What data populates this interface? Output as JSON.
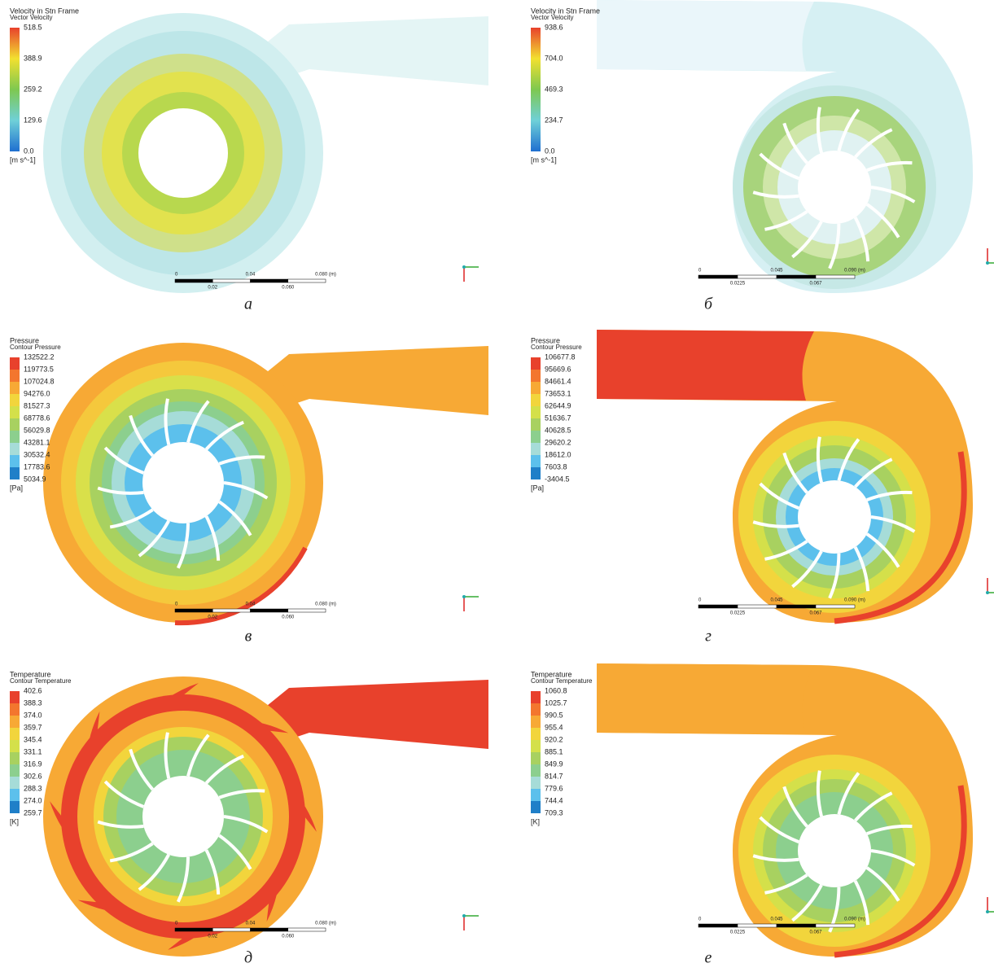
{
  "panels": [
    {
      "label": "а",
      "legend": {
        "title": "Velocity in Stn Frame",
        "subtitle": "Vector Velocity",
        "ticks": [
          "518.5",
          "388.9",
          "259.2",
          "129.6",
          "0.0"
        ],
        "unit": "[m s^-1]"
      },
      "scale": {
        "top": [
          "0",
          "0.04",
          "0.080 (m)"
        ],
        "bottom": [
          "0.02",
          "0.060"
        ]
      }
    },
    {
      "label": "б",
      "legend": {
        "title": "Velocity in Stn Frame",
        "subtitle": "Vector Velocity",
        "ticks": [
          "938.6",
          "704.0",
          "469.3",
          "234.7",
          "0.0"
        ],
        "unit": "[m s^-1]"
      },
      "scale": {
        "top": [
          "0",
          "0.045",
          "0.090 (m)"
        ],
        "bottom": [
          "0.0225",
          "0.067"
        ]
      }
    },
    {
      "label": "в",
      "legend": {
        "title": "Pressure",
        "subtitle": "Contour Pressure",
        "ticks": [
          "132522.2",
          "119773.5",
          "107024.8",
          "94276.0",
          "81527.3",
          "68778.6",
          "56029.8",
          "43281.1",
          "30532.4",
          "17783.6",
          "5034.9"
        ],
        "unit": "[Pa]"
      },
      "scale": {
        "top": [
          "0",
          "0.04",
          "0.080 (m)"
        ],
        "bottom": [
          "0.02",
          "0.060"
        ]
      }
    },
    {
      "label": "г",
      "legend": {
        "title": "Pressure",
        "subtitle": "Contour Pressure",
        "ticks": [
          "106677.8",
          "95669.6",
          "84661.4",
          "73653.1",
          "62644.9",
          "51636.7",
          "40628.5",
          "29620.2",
          "18612.0",
          "7603.8",
          "-3404.5"
        ],
        "unit": "[Pa]"
      },
      "scale": {
        "top": [
          "0",
          "0.045",
          "0.090 (m)"
        ],
        "bottom": [
          "0.0225",
          "0.067"
        ]
      }
    },
    {
      "label": "д",
      "legend": {
        "title": "Temperature",
        "subtitle": "Contour Temperature",
        "ticks": [
          "402.6",
          "388.3",
          "374.0",
          "359.7",
          "345.4",
          "331.1",
          "316.9",
          "302.6",
          "288.3",
          "274.0",
          "259.7"
        ],
        "unit": "[K]"
      },
      "scale": {
        "top": [
          "0",
          "0.04",
          "0.080 (m)"
        ],
        "bottom": [
          "0.02",
          "0.060"
        ]
      }
    },
    {
      "label": "е",
      "legend": {
        "title": "Temperature",
        "subtitle": "Contour Temperature",
        "ticks": [
          "1060.8",
          "1025.7",
          "990.5",
          "955.4",
          "920.2",
          "885.1",
          "849.9",
          "814.7",
          "779.6",
          "744.4",
          "709.3"
        ],
        "unit": "[K]"
      },
      "scale": {
        "top": [
          "0",
          "0.045",
          "0.090 (m)"
        ],
        "bottom": [
          "0.0225",
          "0.067"
        ]
      }
    }
  ]
}
